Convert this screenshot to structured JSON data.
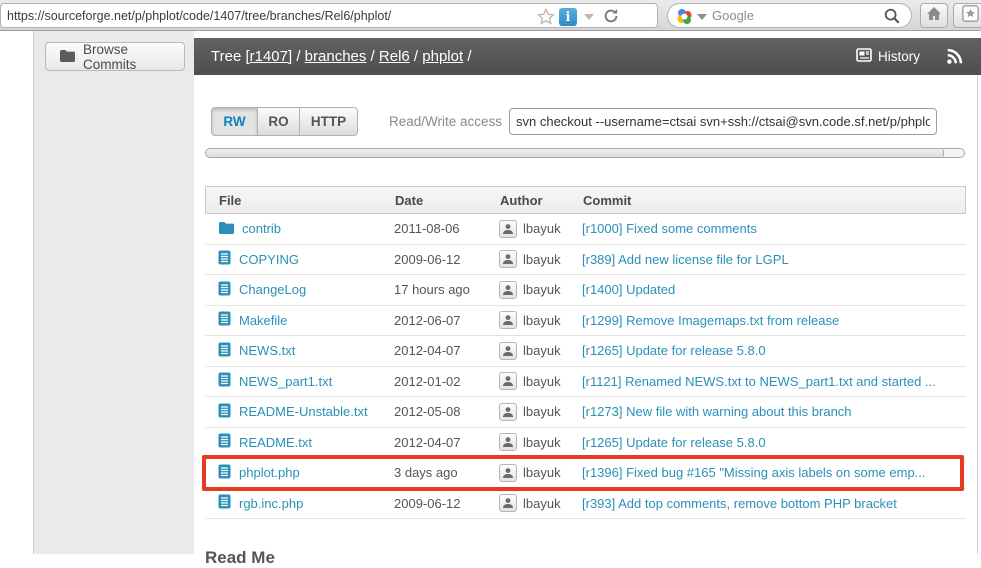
{
  "browser": {
    "url": "https://sourceforge.net/p/phplot/code/1407/tree/branches/Rel6/phplot/",
    "search_engine_label": "Google",
    "blue_icon_glyph": "i"
  },
  "sidebar": {
    "browse_commits_label": "Browse Commits"
  },
  "header": {
    "tree_label": "Tree ",
    "crumbs": [
      "[r1407]",
      "branches",
      "Rel6",
      "phplot"
    ],
    "separator": " / ",
    "trailing": " /",
    "history_label": "History"
  },
  "access": {
    "tabs": [
      "RW",
      "RO",
      "HTTP"
    ],
    "active_tab": "RW",
    "label": "Read/Write access",
    "command": "svn checkout --username=ctsai svn+ssh://ctsai@svn.code.sf.net/p/phplot"
  },
  "colors": {
    "link": "#2a90b8",
    "highlight_red": "#e53b21",
    "active_tab_blue": "#0e82c1"
  },
  "table": {
    "columns": [
      "File",
      "Date",
      "Author",
      "Commit"
    ],
    "rows": [
      {
        "icon": "folder",
        "name": "contrib",
        "date": "2011-08-06",
        "author": "lbayuk",
        "commit": "[r1000] Fixed some comments",
        "highlighted": false
      },
      {
        "icon": "file",
        "name": "COPYING",
        "date": "2009-06-12",
        "author": "lbayuk",
        "commit": "[r389] Add new license file for LGPL",
        "highlighted": false
      },
      {
        "icon": "file",
        "name": "ChangeLog",
        "date": "17 hours ago",
        "author": "lbayuk",
        "commit": "[r1400] Updated",
        "highlighted": false
      },
      {
        "icon": "file",
        "name": "Makefile",
        "date": "2012-06-07",
        "author": "lbayuk",
        "commit": "[r1299] Remove Imagemaps.txt from release",
        "highlighted": false
      },
      {
        "icon": "file",
        "name": "NEWS.txt",
        "date": "2012-04-07",
        "author": "lbayuk",
        "commit": "[r1265] Update for release 5.8.0",
        "highlighted": false
      },
      {
        "icon": "file",
        "name": "NEWS_part1.txt",
        "date": "2012-01-02",
        "author": "lbayuk",
        "commit": "[r1121] Renamed NEWS.txt to NEWS_part1.txt and started ...",
        "highlighted": false
      },
      {
        "icon": "file",
        "name": "README-Unstable.txt",
        "date": "2012-05-08",
        "author": "lbayuk",
        "commit": "[r1273] New file with warning about this branch",
        "highlighted": false
      },
      {
        "icon": "file",
        "name": "README.txt",
        "date": "2012-04-07",
        "author": "lbayuk",
        "commit": "[r1265] Update for release 5.8.0",
        "highlighted": false
      },
      {
        "icon": "file",
        "name": "phplot.php",
        "date": "3 days ago",
        "author": "lbayuk",
        "commit": "[r1396] Fixed bug #165 \"Missing axis labels on some emp...",
        "highlighted": true
      },
      {
        "icon": "file",
        "name": "rgb.inc.php",
        "date": "2009-06-12",
        "author": "lbayuk",
        "commit": "[r393] Add top comments, remove bottom PHP bracket",
        "highlighted": false
      }
    ]
  },
  "readme_heading": "Read Me"
}
